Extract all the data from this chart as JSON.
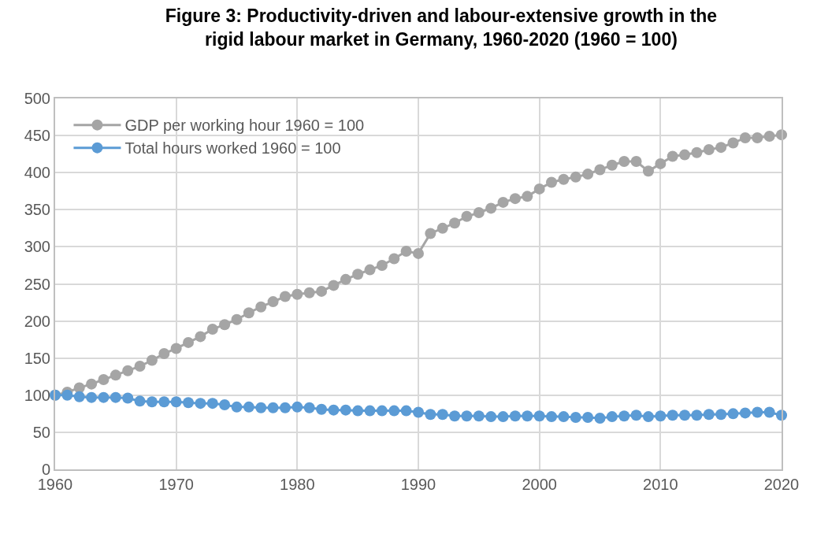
{
  "chart_data": {
    "type": "line",
    "title": "Figure 3: Productivity-driven and labour-extensive growth in the\nrigid labour market in Germany, 1960-2020 (1960 = 100)",
    "x": [
      1960,
      1961,
      1962,
      1963,
      1964,
      1965,
      1966,
      1967,
      1968,
      1969,
      1970,
      1971,
      1972,
      1973,
      1974,
      1975,
      1976,
      1977,
      1978,
      1979,
      1980,
      1981,
      1982,
      1983,
      1984,
      1985,
      1986,
      1987,
      1988,
      1989,
      1990,
      1991,
      1992,
      1993,
      1994,
      1995,
      1996,
      1997,
      1998,
      1999,
      2000,
      2001,
      2002,
      2003,
      2004,
      2005,
      2006,
      2007,
      2008,
      2009,
      2010,
      2011,
      2012,
      2013,
      2014,
      2015,
      2016,
      2017,
      2018,
      2019,
      2020
    ],
    "series": [
      {
        "name": "GDP per working hour 1960 = 100",
        "color": "#a5a5a5",
        "values": [
          100,
          104,
          110,
          115,
          121,
          127,
          133,
          139,
          147,
          156,
          163,
          171,
          179,
          189,
          195,
          202,
          211,
          219,
          226,
          233,
          236,
          238,
          240,
          248,
          256,
          263,
          269,
          275,
          284,
          294,
          291,
          318,
          325,
          332,
          341,
          346,
          352,
          360,
          365,
          368,
          378,
          387,
          391,
          394,
          398,
          404,
          410,
          415,
          415,
          402,
          412,
          422,
          424,
          427,
          431,
          434,
          440,
          447,
          447,
          449,
          451
        ]
      },
      {
        "name": "Total hours worked 1960 = 100",
        "color": "#5b9bd5",
        "values": [
          100,
          100,
          98,
          97,
          97,
          97,
          96,
          92,
          91,
          91,
          91,
          90,
          89,
          89,
          87,
          84,
          84,
          83,
          83,
          83,
          84,
          83,
          81,
          80,
          80,
          79,
          79,
          79,
          79,
          79,
          77,
          74,
          74,
          72,
          72,
          72,
          71,
          71,
          72,
          72,
          72,
          71,
          71,
          70,
          70,
          69,
          71,
          72,
          73,
          71,
          72,
          73,
          73,
          73,
          74,
          74,
          75,
          76,
          77,
          77,
          73
        ]
      }
    ],
    "xlim": [
      1960,
      2020
    ],
    "xticks": [
      1960,
      1970,
      1980,
      1990,
      2000,
      2010,
      2020
    ],
    "ylim": [
      0,
      500
    ],
    "yticks": [
      0,
      50,
      100,
      150,
      200,
      250,
      300,
      350,
      400,
      450,
      500
    ],
    "grid": true,
    "legend": "top left",
    "marker": "circle",
    "line_style": "solid"
  }
}
